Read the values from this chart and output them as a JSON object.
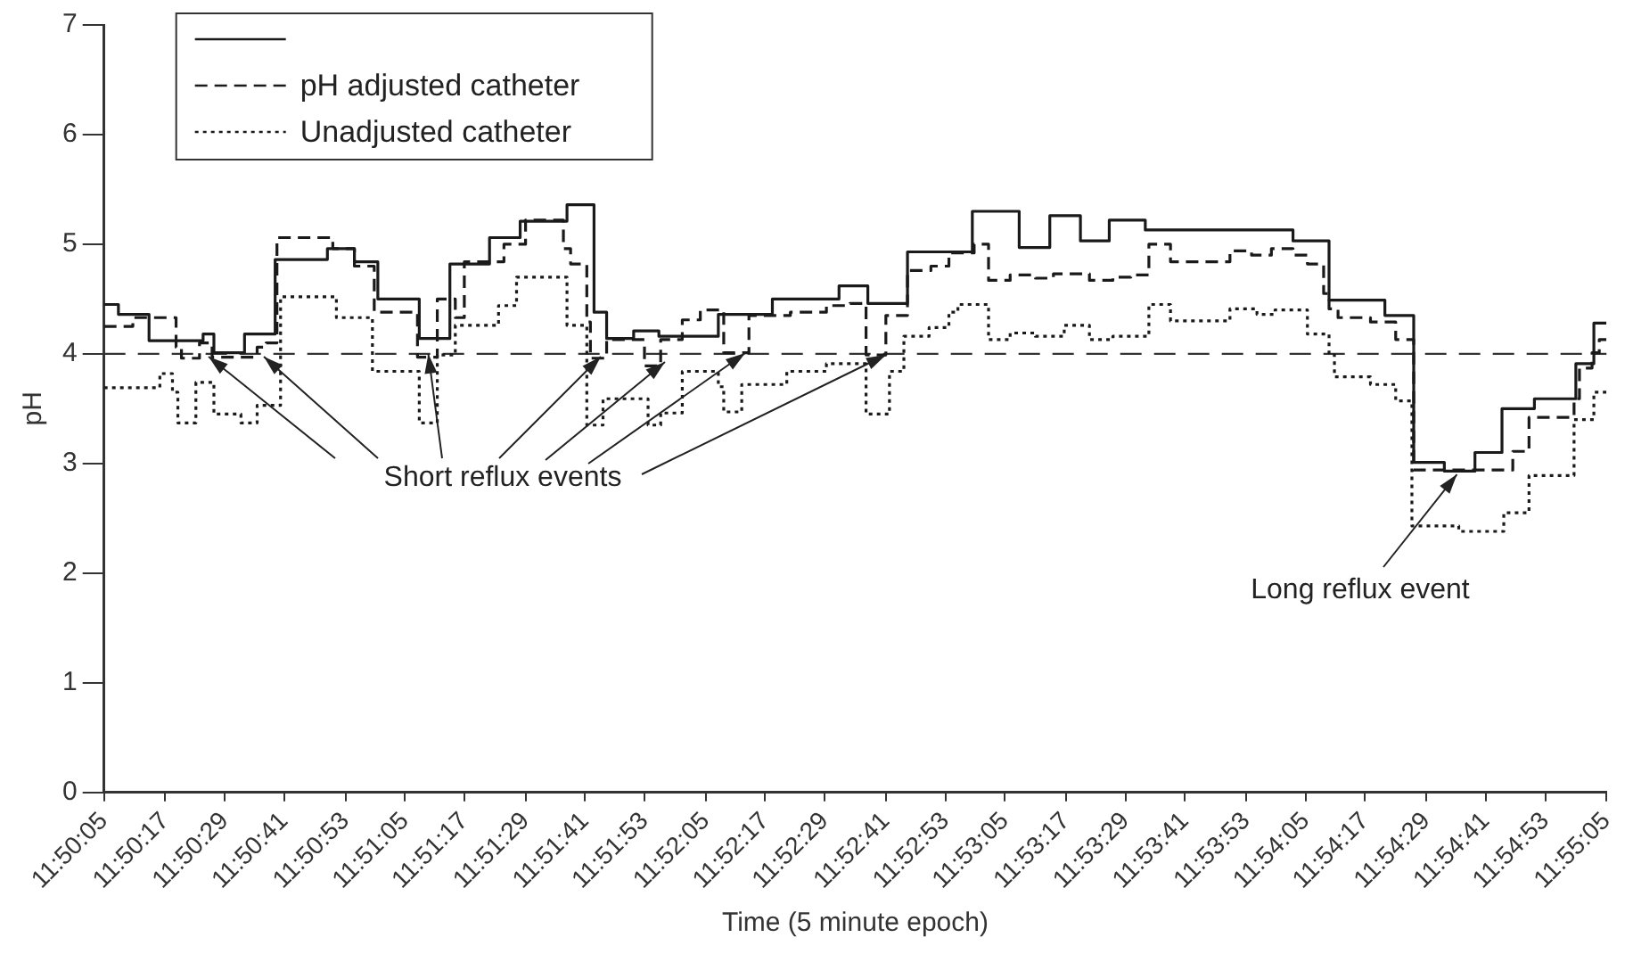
{
  "chart_data": {
    "type": "step",
    "xlabel": "Time (5 minute epoch)",
    "ylabel": "pH",
    "xlim": [
      11.8347,
      11.9181
    ],
    "xticks": [
      {
        "value": 11.8347,
        "label": "11:50:05"
      },
      {
        "value": 11.8381,
        "label": "11:50:17"
      },
      {
        "value": 11.8414,
        "label": "11:50:29"
      },
      {
        "value": 11.8447,
        "label": "11:50:41"
      },
      {
        "value": 11.8481,
        "label": "11:50:53"
      },
      {
        "value": 11.8514,
        "label": "11:51:05"
      },
      {
        "value": 11.8547,
        "label": "11:51:17"
      },
      {
        "value": 11.8581,
        "label": "11:51:29"
      },
      {
        "value": 11.8614,
        "label": "11:51:41"
      },
      {
        "value": 11.8647,
        "label": "11:51:53"
      },
      {
        "value": 11.8681,
        "label": "11:52:05"
      },
      {
        "value": 11.8714,
        "label": "11:52:17"
      },
      {
        "value": 11.8747,
        "label": "11:52:29"
      },
      {
        "value": 11.8781,
        "label": "11:52:41"
      },
      {
        "value": 11.8814,
        "label": "11:52:53"
      },
      {
        "value": 11.8847,
        "label": "11:53:05"
      },
      {
        "value": 11.8881,
        "label": "11:53:17"
      },
      {
        "value": 11.8914,
        "label": "11:53:29"
      },
      {
        "value": 11.8947,
        "label": "11:53:41"
      },
      {
        "value": 11.8981,
        "label": "11:53:53"
      },
      {
        "value": 11.9014,
        "label": "11:54:05"
      },
      {
        "value": 11.9047,
        "label": "11:54:17"
      },
      {
        "value": 11.9081,
        "label": "11:54:29"
      },
      {
        "value": 11.9114,
        "label": "11:54:41"
      },
      {
        "value": 11.9147,
        "label": "11:54:53"
      },
      {
        "value": 11.9181,
        "label": "11:55:05"
      }
    ],
    "ylim": [
      0,
      7
    ],
    "yticks": [
      0,
      1,
      2,
      3,
      4,
      5,
      6,
      7
    ],
    "grid": false,
    "legend": "top left",
    "marker": "none",
    "series": [
      {
        "color": "#1a1a1a",
        "line_style": "solid",
        "x": [
          11.8347,
          11.8355,
          11.8372,
          11.8402,
          11.8408,
          11.8425,
          11.8442,
          11.8471,
          11.8486,
          11.8499,
          11.8522,
          11.8539,
          11.8561,
          11.8578,
          11.8604,
          11.8619,
          11.8626,
          11.8641,
          11.8655,
          11.8688,
          11.8718,
          11.8755,
          11.8771,
          11.8793,
          11.8829,
          11.8855,
          11.8872,
          11.8889,
          11.8905,
          11.8925,
          11.9007,
          11.9027,
          11.9058,
          11.9074,
          11.9091,
          11.9108,
          11.9123,
          11.9141,
          11.9164,
          11.9174,
          11.9181
        ],
        "values": [
          4.45,
          4.36,
          4.12,
          4.18,
          4.01,
          4.18,
          4.86,
          4.96,
          4.84,
          4.5,
          4.14,
          4.82,
          5.06,
          5.21,
          5.36,
          4.38,
          4.14,
          4.21,
          4.16,
          4.36,
          4.5,
          4.62,
          4.46,
          4.93,
          5.3,
          4.97,
          5.26,
          5.03,
          5.22,
          5.13,
          5.03,
          4.49,
          4.35,
          3.01,
          2.93,
          3.1,
          3.5,
          3.59,
          3.91,
          4.28,
          4.28
        ]
      },
      {
        "name": "pH adjusted catheter",
        "color": "#1a1a1a",
        "line_style": "dashed",
        "x": [
          11.8347,
          11.8363,
          11.8387,
          11.839,
          11.84,
          11.8407,
          11.8432,
          11.8437,
          11.8443,
          11.8474,
          11.8486,
          11.8497,
          11.8521,
          11.8532,
          11.8542,
          11.8547,
          11.8569,
          11.8581,
          11.8602,
          11.8606,
          11.8615,
          11.8617,
          11.8626,
          11.8647,
          11.8656,
          11.8668,
          11.8678,
          11.8691,
          11.8705,
          11.8728,
          11.8748,
          11.8761,
          11.877,
          11.8781,
          11.8793,
          11.8806,
          11.8816,
          11.883,
          11.8838,
          11.885,
          11.8864,
          11.8874,
          11.8894,
          11.8907,
          11.8917,
          11.8927,
          11.8939,
          11.8972,
          11.8984,
          11.8995,
          11.9007,
          11.9015,
          11.9024,
          11.9027,
          11.9032,
          11.905,
          11.9064,
          11.9074,
          11.9129,
          11.9138,
          11.9163,
          11.9166,
          11.9173,
          11.9177,
          11.9181
        ],
        "values": [
          4.25,
          4.33,
          4.06,
          3.96,
          4.1,
          3.97,
          4.06,
          4.1,
          5.06,
          4.96,
          4.8,
          4.38,
          3.97,
          4.5,
          4.33,
          4.84,
          5.0,
          5.22,
          4.96,
          4.82,
          4.29,
          3.96,
          4.13,
          3.89,
          4.13,
          4.31,
          4.4,
          4.01,
          4.35,
          4.38,
          4.44,
          4.46,
          3.99,
          4.35,
          4.76,
          4.8,
          4.92,
          5.0,
          4.67,
          4.72,
          4.69,
          4.73,
          4.67,
          4.7,
          4.72,
          5.0,
          4.84,
          4.94,
          4.9,
          4.96,
          4.9,
          4.82,
          4.55,
          4.41,
          4.33,
          4.29,
          4.13,
          2.94,
          3.11,
          3.42,
          3.59,
          3.87,
          4.01,
          4.13,
          4.13
        ]
      },
      {
        "name": "Unadjusted catheter",
        "color": "#1a1a1a",
        "line_style": "dotted",
        "x": [
          11.8347,
          11.8378,
          11.8385,
          11.8388,
          11.8398,
          11.8408,
          11.8423,
          11.8432,
          11.8445,
          11.8476,
          11.8496,
          11.8522,
          11.8532,
          11.8542,
          11.8566,
          11.8576,
          11.8604,
          11.8615,
          11.8624,
          11.8649,
          11.8656,
          11.8668,
          11.8688,
          11.8691,
          11.8701,
          11.8726,
          11.8748,
          11.877,
          11.8783,
          11.8791,
          11.8805,
          11.8816,
          11.8821,
          11.8838,
          11.885,
          11.8864,
          11.888,
          11.8894,
          11.8907,
          11.8927,
          11.8939,
          11.8972,
          11.8987,
          11.8997,
          11.9015,
          11.9027,
          11.903,
          11.905,
          11.9064,
          11.9073,
          11.9099,
          11.9124,
          11.9138,
          11.9163,
          11.9174,
          11.9181
        ],
        "values": [
          3.69,
          3.82,
          3.65,
          3.37,
          3.74,
          3.45,
          3.37,
          3.53,
          4.52,
          4.33,
          3.84,
          3.37,
          3.99,
          4.26,
          4.44,
          4.7,
          4.26,
          3.35,
          3.59,
          3.35,
          3.46,
          3.84,
          3.7,
          3.47,
          3.72,
          3.84,
          3.91,
          3.45,
          3.84,
          4.16,
          4.24,
          4.38,
          4.45,
          4.13,
          4.19,
          4.16,
          4.26,
          4.13,
          4.16,
          4.45,
          4.3,
          4.41,
          4.36,
          4.4,
          4.18,
          3.99,
          3.79,
          3.72,
          3.57,
          2.43,
          2.38,
          2.55,
          2.89,
          3.4,
          3.65,
          3.65
        ]
      }
    ],
    "ref_lines": [
      {
        "axis": "y",
        "value": 4,
        "line_style": "dashed",
        "color": "#333333"
      }
    ],
    "annotations": [
      {
        "text": "Short reflux events",
        "x": 11.8527,
        "y": 4
      },
      {
        "text": "Long reflux event",
        "x": 11.9098,
        "y": 2.9
      }
    ]
  }
}
